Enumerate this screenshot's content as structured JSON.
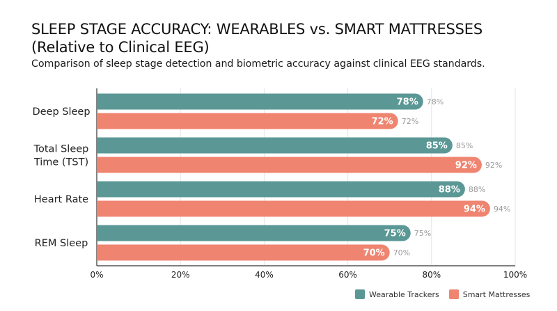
{
  "header": {
    "title": "SLEEP STAGE ACCURACY: WEARABLES vs. SMART MATTRESSES\n(Relative to Clinical EEG)",
    "subtitle": "Comparison of sleep stage detection and biometric accuracy against clinical EEG standards."
  },
  "chart_data": {
    "type": "bar",
    "orientation": "horizontal",
    "categories": [
      "Deep Sleep",
      "Total Sleep\nTime (TST)",
      "Heart Rate",
      "REM Sleep"
    ],
    "series": [
      {
        "name": "Wearable Trackers",
        "values": [
          78,
          85,
          88,
          75
        ],
        "color": "#5b9895"
      },
      {
        "name": "Smart Mattresses",
        "values": [
          72,
          92,
          94,
          70
        ],
        "color": "#ef8470"
      }
    ],
    "xlim": [
      0,
      100
    ],
    "xticks": [
      0,
      20,
      40,
      60,
      80,
      100
    ],
    "tick_suffix": "%",
    "grid": true,
    "legend_position": "bottom-right"
  }
}
